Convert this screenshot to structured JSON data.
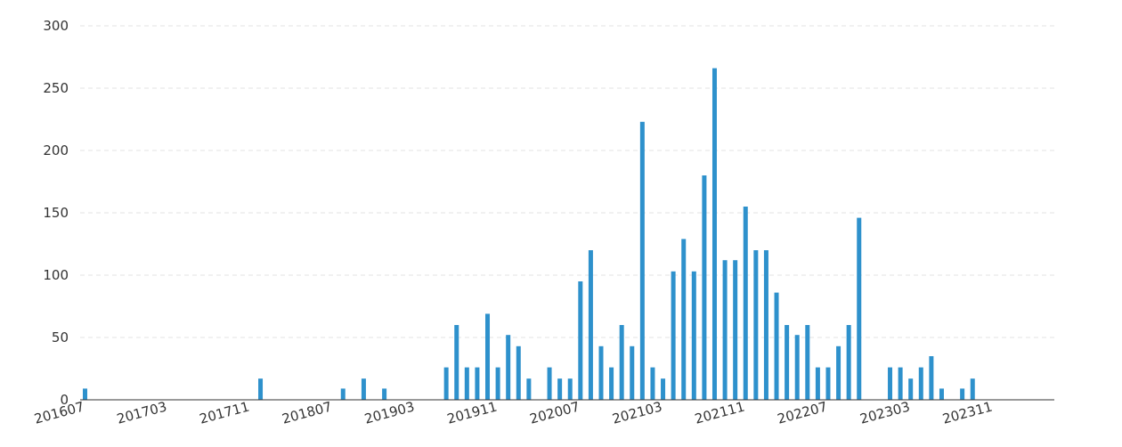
{
  "chart_data": {
    "type": "bar",
    "title": "",
    "xlabel": "",
    "ylabel": "",
    "ylim": [
      0,
      300
    ],
    "yticks": [
      "0",
      "50",
      "100",
      "150",
      "200",
      "250",
      "300"
    ],
    "grid": true,
    "grid_style": "dashed-horizontal",
    "bar_color": "#2e91cc",
    "xtick_labels": [
      "201607",
      "201703",
      "201711",
      "201807",
      "201903",
      "201911",
      "202007",
      "202103",
      "202111",
      "202207",
      "202303",
      "202311"
    ],
    "categories": [
      "201607",
      "201608",
      "201609",
      "201610",
      "201611",
      "201612",
      "201701",
      "201702",
      "201703",
      "201704",
      "201705",
      "201706",
      "201707",
      "201708",
      "201709",
      "201710",
      "201711",
      "201712",
      "201801",
      "201802",
      "201803",
      "201804",
      "201805",
      "201806",
      "201807",
      "201808",
      "201809",
      "201810",
      "201811",
      "201812",
      "201901",
      "201902",
      "201903",
      "201904",
      "201905",
      "201906",
      "201907",
      "201908",
      "201909",
      "201910",
      "201911",
      "201912",
      "202001",
      "202002",
      "202003",
      "202004",
      "202005",
      "202006",
      "202007",
      "202008",
      "202009",
      "202010",
      "202011",
      "202012",
      "202101",
      "202102",
      "202103",
      "202104",
      "202105",
      "202106",
      "202107",
      "202108",
      "202109",
      "202110",
      "202111",
      "202112",
      "202201",
      "202202",
      "202203",
      "202204",
      "202205",
      "202206",
      "202207",
      "202208",
      "202209",
      "202210",
      "202211",
      "202212",
      "202301",
      "202302",
      "202303",
      "202304",
      "202305",
      "202306",
      "202307",
      "202308",
      "202309",
      "202310",
      "202311",
      "202312",
      "202401",
      "202402"
    ],
    "values": [
      9,
      0,
      0,
      0,
      0,
      0,
      0,
      0,
      0,
      0,
      0,
      0,
      0,
      0,
      0,
      0,
      0,
      17,
      0,
      0,
      0,
      0,
      0,
      0,
      0,
      9,
      0,
      17,
      0,
      9,
      0,
      0,
      0,
      0,
      0,
      26,
      60,
      26,
      26,
      69,
      26,
      52,
      43,
      17,
      0,
      26,
      17,
      17,
      95,
      120,
      43,
      26,
      60,
      43,
      223,
      26,
      17,
      103,
      129,
      103,
      180,
      266,
      112,
      112,
      155,
      120,
      120,
      86,
      60,
      52,
      60,
      26,
      26,
      43,
      60,
      146,
      0,
      0,
      26,
      26,
      17,
      26,
      35,
      9,
      0,
      9,
      17,
      0,
      0,
      0,
      0,
      0
    ]
  }
}
